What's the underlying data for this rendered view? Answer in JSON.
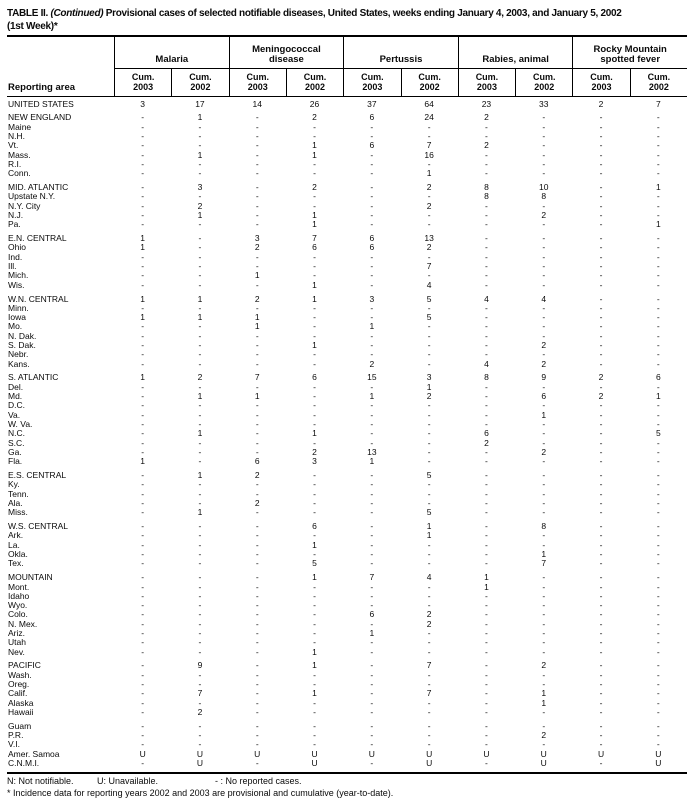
{
  "title": {
    "prefix": "TABLE II. ",
    "continued": "(Continued)",
    "rest": " Provisional cases of selected notifiable diseases, United States, weeks ending January 4, 2003, and January 5, 2002",
    "week": "(1st Week)*"
  },
  "header": {
    "reporting_area": "Reporting area",
    "groups": [
      "Malaria",
      "Meningococcal\ndisease",
      "Pertussis",
      "Rabies, animal",
      "Rocky Mountain\nspotted fever"
    ],
    "sub_label": "Cum.",
    "years": [
      "2003",
      "2002"
    ]
  },
  "blocks": [
    {
      "rows": [
        {
          "area": "UNITED STATES",
          "values": [
            "3",
            "17",
            "14",
            "26",
            "37",
            "64",
            "23",
            "33",
            "2",
            "7"
          ]
        }
      ]
    },
    {
      "rows": [
        {
          "area": "NEW ENGLAND",
          "values": [
            "-",
            "1",
            "-",
            "2",
            "6",
            "24",
            "2",
            "-",
            "-",
            "-"
          ]
        },
        {
          "area": "Maine",
          "values": [
            "-",
            "-",
            "-",
            "-",
            "-",
            "-",
            "-",
            "-",
            "-",
            "-"
          ]
        },
        {
          "area": "N.H.",
          "values": [
            "-",
            "-",
            "-",
            "-",
            "-",
            "-",
            "-",
            "-",
            "-",
            "-"
          ]
        },
        {
          "area": "Vt.",
          "values": [
            "-",
            "-",
            "-",
            "1",
            "6",
            "7",
            "2",
            "-",
            "-",
            "-"
          ]
        },
        {
          "area": "Mass.",
          "values": [
            "-",
            "1",
            "-",
            "1",
            "-",
            "16",
            "-",
            "-",
            "-",
            "-"
          ]
        },
        {
          "area": "R.I.",
          "values": [
            "-",
            "-",
            "-",
            "-",
            "-",
            "-",
            "-",
            "-",
            "-",
            "-"
          ]
        },
        {
          "area": "Conn.",
          "values": [
            "-",
            "-",
            "-",
            "-",
            "-",
            "1",
            "-",
            "-",
            "-",
            "-"
          ]
        }
      ]
    },
    {
      "rows": [
        {
          "area": "MID. ATLANTIC",
          "values": [
            "-",
            "3",
            "-",
            "2",
            "-",
            "2",
            "8",
            "10",
            "-",
            "1"
          ]
        },
        {
          "area": "Upstate N.Y.",
          "values": [
            "-",
            "-",
            "-",
            "-",
            "-",
            "-",
            "8",
            "8",
            "-",
            "-"
          ]
        },
        {
          "area": "N.Y. City",
          "values": [
            "-",
            "2",
            "-",
            "-",
            "-",
            "2",
            "-",
            "-",
            "-",
            "-"
          ]
        },
        {
          "area": "N.J.",
          "values": [
            "-",
            "1",
            "-",
            "1",
            "-",
            "-",
            "-",
            "2",
            "-",
            "-"
          ]
        },
        {
          "area": "Pa.",
          "values": [
            "-",
            "-",
            "-",
            "1",
            "-",
            "-",
            "-",
            "-",
            "-",
            "1"
          ]
        }
      ]
    },
    {
      "rows": [
        {
          "area": "E.N. CENTRAL",
          "values": [
            "1",
            "-",
            "3",
            "7",
            "6",
            "13",
            "-",
            "-",
            "-",
            "-"
          ]
        },
        {
          "area": "Ohio",
          "values": [
            "1",
            "-",
            "2",
            "6",
            "6",
            "2",
            "-",
            "-",
            "-",
            "-"
          ]
        },
        {
          "area": "Ind.",
          "values": [
            "-",
            "-",
            "-",
            "-",
            "-",
            "-",
            "-",
            "-",
            "-",
            "-"
          ]
        },
        {
          "area": "Ill.",
          "values": [
            "-",
            "-",
            "-",
            "-",
            "-",
            "7",
            "-",
            "-",
            "-",
            "-"
          ]
        },
        {
          "area": "Mich.",
          "values": [
            "-",
            "-",
            "1",
            "-",
            "-",
            "-",
            "-",
            "-",
            "-",
            "-"
          ]
        },
        {
          "area": "Wis.",
          "values": [
            "-",
            "-",
            "-",
            "1",
            "-",
            "4",
            "-",
            "-",
            "-",
            "-"
          ]
        }
      ]
    },
    {
      "rows": [
        {
          "area": "W.N. CENTRAL",
          "values": [
            "1",
            "1",
            "2",
            "1",
            "3",
            "5",
            "4",
            "4",
            "-",
            "-"
          ]
        },
        {
          "area": "Minn.",
          "values": [
            "-",
            "-",
            "-",
            "-",
            "-",
            "-",
            "-",
            "-",
            "-",
            "-"
          ]
        },
        {
          "area": "Iowa",
          "values": [
            "1",
            "1",
            "1",
            "-",
            "-",
            "5",
            "-",
            "-",
            "-",
            "-"
          ]
        },
        {
          "area": "Mo.",
          "values": [
            "-",
            "-",
            "1",
            "-",
            "1",
            "-",
            "-",
            "-",
            "-",
            "-"
          ]
        },
        {
          "area": "N. Dak.",
          "values": [
            "-",
            "-",
            "-",
            "-",
            "-",
            "-",
            "-",
            "-",
            "-",
            "-"
          ]
        },
        {
          "area": "S. Dak.",
          "values": [
            "-",
            "-",
            "-",
            "1",
            "-",
            "-",
            "-",
            "2",
            "-",
            "-"
          ]
        },
        {
          "area": "Nebr.",
          "values": [
            "-",
            "-",
            "-",
            "-",
            "-",
            "-",
            "-",
            "-",
            "-",
            "-"
          ]
        },
        {
          "area": "Kans.",
          "values": [
            "-",
            "-",
            "-",
            "-",
            "2",
            "-",
            "4",
            "2",
            "-",
            "-"
          ]
        }
      ]
    },
    {
      "rows": [
        {
          "area": "S. ATLANTIC",
          "values": [
            "1",
            "2",
            "7",
            "6",
            "15",
            "3",
            "8",
            "9",
            "2",
            "6"
          ]
        },
        {
          "area": "Del.",
          "values": [
            "-",
            "-",
            "-",
            "-",
            "-",
            "1",
            "-",
            "-",
            "-",
            "-"
          ]
        },
        {
          "area": "Md.",
          "values": [
            "-",
            "1",
            "1",
            "-",
            "1",
            "2",
            "-",
            "6",
            "2",
            "1"
          ]
        },
        {
          "area": "D.C.",
          "values": [
            "-",
            "-",
            "-",
            "-",
            "-",
            "-",
            "-",
            "-",
            "-",
            "-"
          ]
        },
        {
          "area": "Va.",
          "values": [
            "-",
            "-",
            "-",
            "-",
            "-",
            "-",
            "-",
            "1",
            "-",
            "-"
          ]
        },
        {
          "area": "W. Va.",
          "values": [
            "-",
            "-",
            "-",
            "-",
            "-",
            "-",
            "-",
            "-",
            "-",
            "-"
          ]
        },
        {
          "area": "N.C.",
          "values": [
            "-",
            "1",
            "-",
            "1",
            "-",
            "-",
            "6",
            "-",
            "-",
            "5"
          ]
        },
        {
          "area": "S.C.",
          "values": [
            "-",
            "-",
            "-",
            "-",
            "-",
            "-",
            "2",
            "-",
            "-",
            "-"
          ]
        },
        {
          "area": "Ga.",
          "values": [
            "-",
            "-",
            "-",
            "2",
            "13",
            "-",
            "-",
            "2",
            "-",
            "-"
          ]
        },
        {
          "area": "Fla.",
          "values": [
            "1",
            "-",
            "6",
            "3",
            "1",
            "-",
            "-",
            "-",
            "-",
            "-"
          ]
        }
      ]
    },
    {
      "rows": [
        {
          "area": "E.S. CENTRAL",
          "values": [
            "-",
            "1",
            "2",
            "-",
            "-",
            "5",
            "-",
            "-",
            "-",
            "-"
          ]
        },
        {
          "area": "Ky.",
          "values": [
            "-",
            "-",
            "-",
            "-",
            "-",
            "-",
            "-",
            "-",
            "-",
            "-"
          ]
        },
        {
          "area": "Tenn.",
          "values": [
            "-",
            "-",
            "-",
            "-",
            "-",
            "-",
            "-",
            "-",
            "-",
            "-"
          ]
        },
        {
          "area": "Ala.",
          "values": [
            "-",
            "-",
            "2",
            "-",
            "-",
            "-",
            "-",
            "-",
            "-",
            "-"
          ]
        },
        {
          "area": "Miss.",
          "values": [
            "-",
            "1",
            "-",
            "-",
            "-",
            "5",
            "-",
            "-",
            "-",
            "-"
          ]
        }
      ]
    },
    {
      "rows": [
        {
          "area": "W.S. CENTRAL",
          "values": [
            "-",
            "-",
            "-",
            "6",
            "-",
            "1",
            "-",
            "8",
            "-",
            "-"
          ]
        },
        {
          "area": "Ark.",
          "values": [
            "-",
            "-",
            "-",
            "-",
            "-",
            "1",
            "-",
            "-",
            "-",
            "-"
          ]
        },
        {
          "area": "La.",
          "values": [
            "-",
            "-",
            "-",
            "1",
            "-",
            "-",
            "-",
            "-",
            "-",
            "-"
          ]
        },
        {
          "area": "Okla.",
          "values": [
            "-",
            "-",
            "-",
            "-",
            "-",
            "-",
            "-",
            "1",
            "-",
            "-"
          ]
        },
        {
          "area": "Tex.",
          "values": [
            "-",
            "-",
            "-",
            "5",
            "-",
            "-",
            "-",
            "7",
            "-",
            "-"
          ]
        }
      ]
    },
    {
      "rows": [
        {
          "area": "MOUNTAIN",
          "values": [
            "-",
            "-",
            "-",
            "1",
            "7",
            "4",
            "1",
            "-",
            "-",
            "-"
          ]
        },
        {
          "area": "Mont.",
          "values": [
            "-",
            "-",
            "-",
            "-",
            "-",
            "-",
            "1",
            "-",
            "-",
            "-"
          ]
        },
        {
          "area": "Idaho",
          "values": [
            "-",
            "-",
            "-",
            "-",
            "-",
            "-",
            "-",
            "-",
            "-",
            "-"
          ]
        },
        {
          "area": "Wyo.",
          "values": [
            "-",
            "-",
            "-",
            "-",
            "-",
            "-",
            "-",
            "-",
            "-",
            "-"
          ]
        },
        {
          "area": "Colo.",
          "values": [
            "-",
            "-",
            "-",
            "-",
            "6",
            "2",
            "-",
            "-",
            "-",
            "-"
          ]
        },
        {
          "area": "N. Mex.",
          "values": [
            "-",
            "-",
            "-",
            "-",
            "-",
            "2",
            "-",
            "-",
            "-",
            "-"
          ]
        },
        {
          "area": "Ariz.",
          "values": [
            "-",
            "-",
            "-",
            "-",
            "1",
            "-",
            "-",
            "-",
            "-",
            "-"
          ]
        },
        {
          "area": "Utah",
          "values": [
            "-",
            "-",
            "-",
            "-",
            "-",
            "-",
            "-",
            "-",
            "-",
            "-"
          ]
        },
        {
          "area": "Nev.",
          "values": [
            "-",
            "-",
            "-",
            "1",
            "-",
            "-",
            "-",
            "-",
            "-",
            "-"
          ]
        }
      ]
    },
    {
      "rows": [
        {
          "area": "PACIFIC",
          "values": [
            "-",
            "9",
            "-",
            "1",
            "-",
            "7",
            "-",
            "2",
            "-",
            "-"
          ]
        },
        {
          "area": "Wash.",
          "values": [
            "-",
            "-",
            "-",
            "-",
            "-",
            "-",
            "-",
            "-",
            "-",
            "-"
          ]
        },
        {
          "area": "Oreg.",
          "values": [
            "-",
            "-",
            "-",
            "-",
            "-",
            "-",
            "-",
            "-",
            "-",
            "-"
          ]
        },
        {
          "area": "Calif.",
          "values": [
            "-",
            "7",
            "-",
            "1",
            "-",
            "7",
            "-",
            "1",
            "-",
            "-"
          ]
        },
        {
          "area": "Alaska",
          "values": [
            "-",
            "-",
            "-",
            "-",
            "-",
            "-",
            "-",
            "1",
            "-",
            "-"
          ]
        },
        {
          "area": "Hawaii",
          "values": [
            "-",
            "2",
            "-",
            "-",
            "-",
            "-",
            "-",
            "-",
            "-",
            "-"
          ]
        }
      ]
    },
    {
      "rows": [
        {
          "area": "Guam",
          "values": [
            "-",
            "-",
            "-",
            "-",
            "-",
            "-",
            "-",
            "-",
            "-",
            "-"
          ]
        },
        {
          "area": "P.R.",
          "values": [
            "-",
            "-",
            "-",
            "-",
            "-",
            "-",
            "-",
            "2",
            "-",
            "-"
          ]
        },
        {
          "area": "V.I.",
          "values": [
            "-",
            "-",
            "-",
            "-",
            "-",
            "-",
            "-",
            "-",
            "-",
            "-"
          ]
        },
        {
          "area": "Amer. Samoa",
          "values": [
            "U",
            "U",
            "U",
            "U",
            "U",
            "U",
            "U",
            "U",
            "U",
            "U"
          ]
        },
        {
          "area": "C.N.M.I.",
          "values": [
            "-",
            "U",
            "-",
            "U",
            "-",
            "U",
            "-",
            "U",
            "-",
            "U"
          ]
        }
      ]
    }
  ],
  "footnotes": {
    "n": "N: Not notifiable.",
    "u": "U: Unavailable.",
    "dash": "- : No reported cases.",
    "asterisk": "* Incidence data for reporting years 2002 and 2003 are provisional and cumulative (year-to-date)."
  }
}
